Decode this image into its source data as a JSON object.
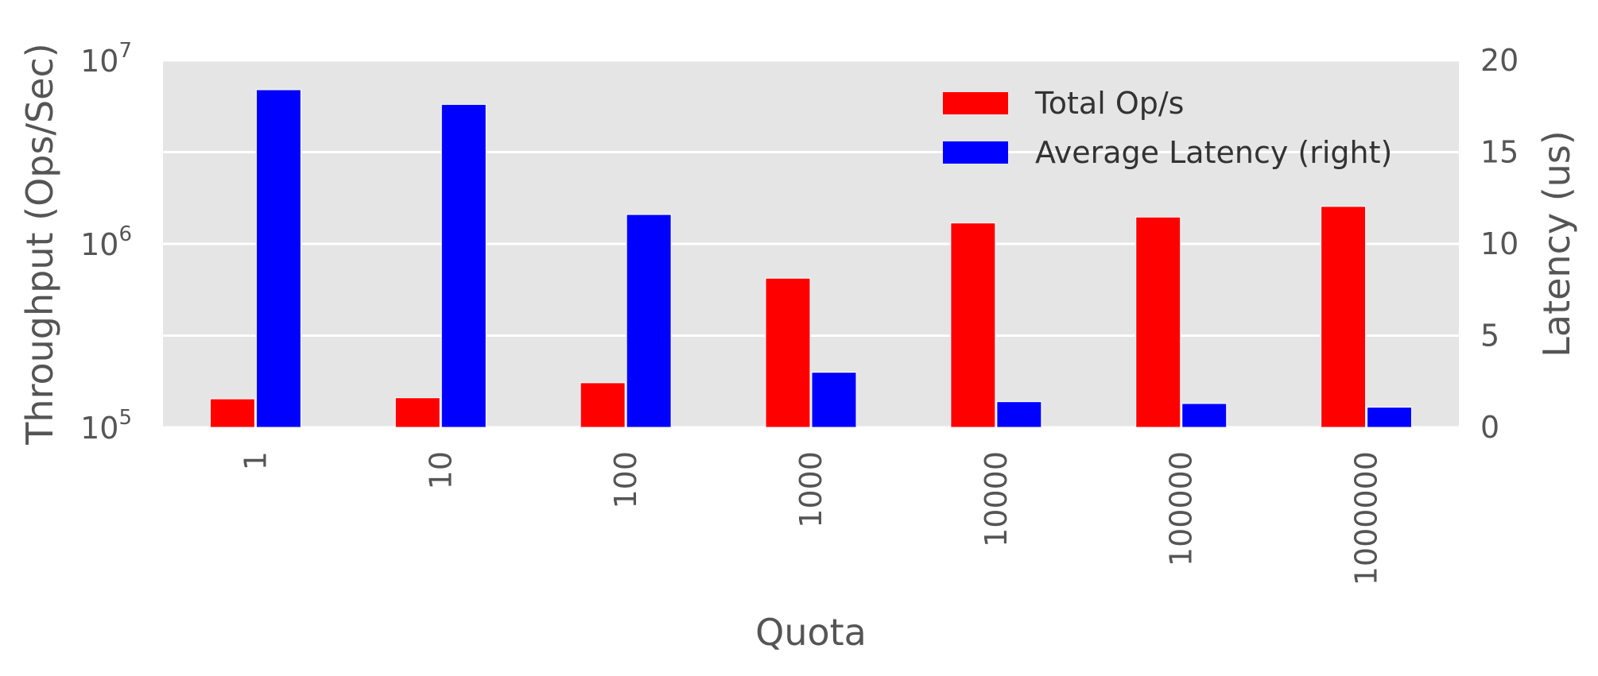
{
  "chart_data": {
    "type": "bar",
    "categories": [
      "1",
      "10",
      "100",
      "1000",
      "10000",
      "100000",
      "1000000"
    ],
    "xlabel": "Quota",
    "ylabel": "Throughput (Ops/Sec)",
    "ylabel_right": "Latency (us)",
    "yscale": "log",
    "ylim": [
      100000,
      10000000
    ],
    "ylim_right": [
      0,
      20
    ],
    "yticks_left": [
      {
        "base": "10",
        "exp": "5",
        "value": 100000
      },
      {
        "base": "10",
        "exp": "6",
        "value": 1000000
      },
      {
        "base": "10",
        "exp": "7",
        "value": 10000000
      }
    ],
    "yticks_right": [
      "0",
      "5",
      "10",
      "15",
      "20"
    ],
    "grid": true,
    "legend_position": "top-right",
    "series": [
      {
        "name": "Total Op/s",
        "axis": "left",
        "color": "#ff0000",
        "values": [
          143000,
          145000,
          175000,
          650000,
          1300000,
          1400000,
          1600000
        ]
      },
      {
        "name": "Average Latency (right)",
        "axis": "right",
        "color": "#0000ff",
        "values": [
          18.4,
          17.6,
          11.6,
          3.0,
          1.4,
          1.3,
          1.1
        ]
      }
    ]
  }
}
